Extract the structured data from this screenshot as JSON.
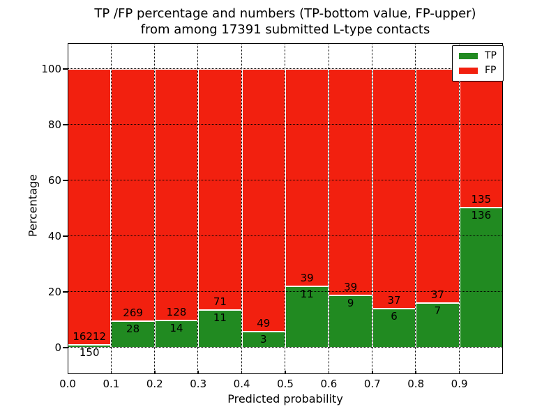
{
  "chart_data": {
    "type": "bar",
    "stacked": true,
    "normalized": "percent-of-bin",
    "title": "TP /FP percentage and numbers (TP-bottom value, FP-upper) from among 17391 submitted L-type contacts",
    "title_lines": [
      "TP /FP percentage and numbers (TP-bottom value, FP-upper)",
      "from among 17391 submitted L-type contacts"
    ],
    "xlabel": "Predicted probability",
    "ylabel": "Percentage",
    "total_contacts": 17391,
    "bins": [
      "0.0-0.1",
      "0.1-0.2",
      "0.2-0.3",
      "0.3-0.4",
      "0.4-0.5",
      "0.5-0.6",
      "0.6-0.7",
      "0.7-0.8",
      "0.8-0.9",
      "0.9-1.0"
    ],
    "series": [
      {
        "name": "TP",
        "color": "#218a21",
        "counts": [
          150,
          28,
          14,
          11,
          3,
          11,
          9,
          6,
          7,
          136
        ],
        "percent_of_bin": [
          0.92,
          9.43,
          9.86,
          13.41,
          5.77,
          22.0,
          18.75,
          13.95,
          15.91,
          50.18
        ]
      },
      {
        "name": "FP",
        "color": "#f2200f",
        "counts": [
          16212,
          269,
          128,
          71,
          49,
          39,
          39,
          37,
          37,
          135
        ],
        "percent_of_bin": [
          99.08,
          90.57,
          90.14,
          86.59,
          94.23,
          78.0,
          81.25,
          86.05,
          84.09,
          49.82
        ]
      }
    ],
    "xticks": [
      "0.0",
      "0.1",
      "0.2",
      "0.3",
      "0.4",
      "0.5",
      "0.6",
      "0.7",
      "0.8",
      "0.9"
    ],
    "yticks": [
      "0",
      "20",
      "40",
      "60",
      "80",
      "100"
    ],
    "xlim": [
      0.0,
      1.0
    ],
    "ylim": [
      -9.5,
      109.25
    ],
    "grid": "dotted",
    "bar_edge_color": "#ffffff",
    "legend": {
      "position": "upper right",
      "entries": [
        "TP",
        "FP"
      ]
    }
  }
}
